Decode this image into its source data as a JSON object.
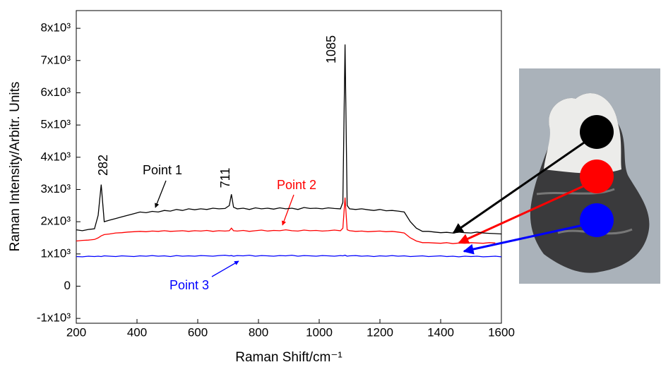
{
  "chart_data": {
    "type": "line",
    "xlabel": "Raman Shift/cm⁻¹",
    "ylabel": "Raman Intensity/Arbitr. Units",
    "xlim": [
      200,
      1600
    ],
    "ylim": [
      -1150,
      8550
    ],
    "xticks": [
      200,
      400,
      600,
      800,
      1000,
      1200,
      1400,
      1600
    ],
    "yticks": [
      {
        "value": -1000,
        "label": "-1x10³"
      },
      0,
      {
        "value": 1000,
        "label": "1x10³"
      },
      {
        "value": 2000,
        "label": "2x10³"
      },
      {
        "value": 3000,
        "label": "3x10³"
      },
      {
        "value": 4000,
        "label": "4x10³"
      },
      {
        "value": 5000,
        "label": "5x10³"
      },
      {
        "value": 6000,
        "label": "6x10³"
      },
      {
        "value": 7000,
        "label": "7x10³"
      },
      {
        "value": 8000,
        "label": "8x10³"
      }
    ],
    "peak_labels": [
      "282",
      "711",
      "1085"
    ],
    "x": [
      200,
      220,
      240,
      260,
      272,
      282,
      292,
      310,
      330,
      350,
      370,
      390,
      410,
      430,
      450,
      470,
      490,
      510,
      530,
      550,
      570,
      590,
      610,
      630,
      650,
      670,
      690,
      704,
      711,
      718,
      730,
      750,
      770,
      790,
      810,
      830,
      850,
      870,
      890,
      910,
      930,
      950,
      970,
      990,
      1010,
      1030,
      1050,
      1070,
      1078,
      1085,
      1092,
      1100,
      1120,
      1140,
      1160,
      1180,
      1200,
      1220,
      1240,
      1260,
      1280,
      1300,
      1320,
      1340,
      1360,
      1380,
      1400,
      1420,
      1440,
      1460,
      1480,
      1500,
      1520,
      1540,
      1560,
      1580,
      1600
    ],
    "series": [
      {
        "name": "Point 1",
        "color": "#000000",
        "values": [
          1750,
          1720,
          1760,
          1780,
          2200,
          3150,
          2000,
          2050,
          2100,
          2150,
          2200,
          2250,
          2300,
          2280,
          2320,
          2300,
          2350,
          2330,
          2380,
          2350,
          2400,
          2370,
          2400,
          2380,
          2420,
          2400,
          2410,
          2500,
          2850,
          2450,
          2400,
          2420,
          2380,
          2430,
          2400,
          2420,
          2390,
          2430,
          2400,
          2420,
          2380,
          2440,
          2410,
          2420,
          2400,
          2430,
          2410,
          2400,
          2600,
          7500,
          2500,
          2400,
          2380,
          2400,
          2370,
          2350,
          2380,
          2340,
          2350,
          2330,
          2300,
          2000,
          1800,
          1700,
          1700,
          1680,
          1660,
          1670,
          1650,
          1680,
          1660,
          1650,
          1680,
          1650,
          1640,
          1630,
          1620
        ]
      },
      {
        "name": "Point 2",
        "color": "#ff0000",
        "values": [
          1400,
          1420,
          1430,
          1450,
          1500,
          1560,
          1600,
          1620,
          1650,
          1660,
          1680,
          1690,
          1700,
          1690,
          1710,
          1700,
          1720,
          1700,
          1710,
          1720,
          1700,
          1720,
          1710,
          1730,
          1700,
          1720,
          1710,
          1720,
          1800,
          1720,
          1710,
          1730,
          1700,
          1720,
          1740,
          1710,
          1730,
          1720,
          1750,
          1720,
          1710,
          1740,
          1720,
          1730,
          1710,
          1720,
          1740,
          1720,
          1800,
          2750,
          1750,
          1720,
          1700,
          1710,
          1690,
          1700,
          1710,
          1690,
          1700,
          1680,
          1650,
          1500,
          1400,
          1350,
          1350,
          1340,
          1330,
          1350,
          1320,
          1340,
          1330,
          1350,
          1340,
          1330,
          1350,
          1340,
          null
        ]
      },
      {
        "name": "Point 3",
        "color": "#0000ff",
        "values": [
          920,
          910,
          930,
          920,
          930,
          920,
          940,
          930,
          920,
          940,
          930,
          920,
          940,
          930,
          950,
          930,
          940,
          920,
          950,
          930,
          940,
          930,
          950,
          940,
          930,
          950,
          960,
          940,
          950,
          930,
          950,
          940,
          960,
          930,
          950,
          940,
          930,
          950,
          940,
          960,
          930,
          950,
          940,
          930,
          950,
          940,
          930,
          950,
          940,
          960,
          930,
          940,
          950,
          930,
          940,
          920,
          940,
          930,
          950,
          930,
          940,
          920,
          930,
          940,
          920,
          930,
          940,
          920,
          930,
          910,
          930,
          920,
          930,
          910,
          920,
          930,
          910
        ]
      }
    ]
  }
}
